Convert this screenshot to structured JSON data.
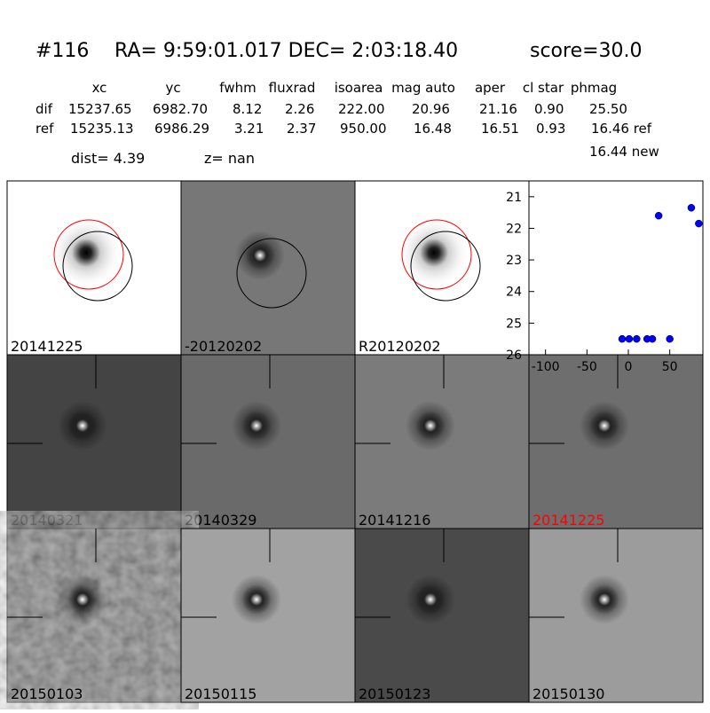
{
  "header": {
    "id": "#116",
    "coords": "RA= 9:59:01.017 DEC= 2:03:18.40",
    "score": "score=30.0"
  },
  "table": {
    "columns": [
      "xc",
      "yc",
      "fwhm",
      "fluxrad",
      "isoarea",
      "mag auto",
      "aper",
      "cl star",
      "phmag"
    ],
    "rows": [
      [
        "dif",
        "15237.65",
        "6982.70",
        "8.12",
        "2.26",
        "222.00",
        "20.96",
        "21.16",
        "0.90",
        "25.50"
      ],
      [
        "ref",
        "15235.13",
        "6986.29",
        "3.21",
        "2.37",
        "950.00",
        "16.48",
        "16.51",
        "0.93",
        "16.46 ref"
      ]
    ],
    "extra": "16.44 new"
  },
  "dist": "dist=  4.39",
  "z": "z=   nan",
  "panels": [
    {
      "label": "20141225"
    },
    {
      "label": "-20120202"
    },
    {
      "label": "R20120202"
    },
    {
      "label": "20140321"
    },
    {
      "label": "20140329"
    },
    {
      "label": "20141216"
    },
    {
      "label": "20141225",
      "color": "#ff0000"
    },
    {
      "label": "20150103"
    },
    {
      "label": "20150115"
    },
    {
      "label": "20150123"
    },
    {
      "label": "20150130"
    }
  ],
  "chart_data": {
    "type": "scatter",
    "color": "#0000ff",
    "x": [
      -7.5,
      1,
      10,
      22.6,
      29,
      50,
      36.6,
      76,
      85
    ],
    "values": [
      25.5,
      25.5,
      25.5,
      25.5,
      25.5,
      25.5,
      21.6,
      21.35,
      21.85
    ],
    "xlim": [
      -120,
      90
    ],
    "ylim": [
      26,
      20.5
    ],
    "xticks": [
      -100,
      -50,
      0,
      50
    ],
    "yticks": [
      21,
      22,
      23,
      24,
      25,
      26
    ]
  }
}
